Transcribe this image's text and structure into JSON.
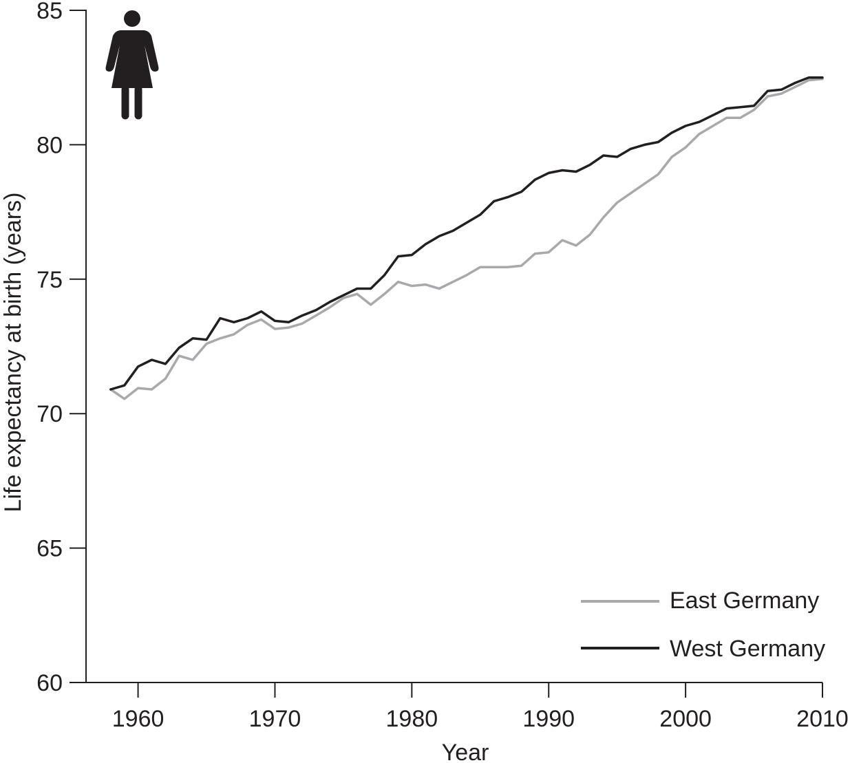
{
  "chart_data": {
    "type": "line",
    "title": "",
    "xlabel": "Year",
    "ylabel": "Life expectancy at birth (years)",
    "xlim": [
      1956.2,
      2010
    ],
    "ylim": [
      60,
      85
    ],
    "x_ticks": [
      1960,
      1970,
      1980,
      1990,
      2000,
      2010
    ],
    "y_ticks": [
      60,
      65,
      70,
      75,
      80,
      85
    ],
    "grid": false,
    "legend_position": "bottom-right",
    "icon": "woman-icon",
    "x": [
      1958,
      1959,
      1960,
      1961,
      1962,
      1963,
      1964,
      1965,
      1966,
      1967,
      1968,
      1969,
      1970,
      1971,
      1972,
      1973,
      1974,
      1975,
      1976,
      1977,
      1978,
      1979,
      1980,
      1981,
      1982,
      1983,
      1984,
      1985,
      1986,
      1987,
      1988,
      1989,
      1990,
      1991,
      1992,
      1993,
      1994,
      1995,
      1996,
      1997,
      1998,
      1999,
      2000,
      2001,
      2002,
      2003,
      2004,
      2005,
      2006,
      2007,
      2008,
      2009,
      2010
    ],
    "series": [
      {
        "name": "East Germany",
        "color": "#a7a9ac",
        "values": [
          70.9,
          70.55,
          70.95,
          70.9,
          71.3,
          72.15,
          72.0,
          72.6,
          72.8,
          72.95,
          73.3,
          73.5,
          73.15,
          73.2,
          73.35,
          73.65,
          73.95,
          74.3,
          74.45,
          74.05,
          74.45,
          74.9,
          74.75,
          74.8,
          74.65,
          74.9,
          75.15,
          75.45,
          75.45,
          75.45,
          75.5,
          75.95,
          76.0,
          76.45,
          76.25,
          76.65,
          77.3,
          77.85,
          78.2,
          78.55,
          78.9,
          79.55,
          79.9,
          80.4,
          80.7,
          81.0,
          81.0,
          81.3,
          81.8,
          81.9,
          82.15,
          82.4,
          82.45
        ]
      },
      {
        "name": "West Germany",
        "color": "#231f20",
        "values": [
          70.9,
          71.05,
          71.75,
          72.0,
          71.85,
          72.45,
          72.8,
          72.75,
          73.55,
          73.4,
          73.55,
          73.8,
          73.45,
          73.4,
          73.65,
          73.85,
          74.15,
          74.4,
          74.65,
          74.65,
          75.15,
          75.85,
          75.9,
          76.3,
          76.6,
          76.8,
          77.1,
          77.4,
          77.9,
          78.05,
          78.25,
          78.7,
          78.95,
          79.05,
          79.0,
          79.25,
          79.6,
          79.55,
          79.85,
          80.0,
          80.1,
          80.45,
          80.7,
          80.85,
          81.1,
          81.35,
          81.4,
          81.45,
          82.0,
          82.05,
          82.3,
          82.5,
          82.5
        ]
      }
    ]
  }
}
